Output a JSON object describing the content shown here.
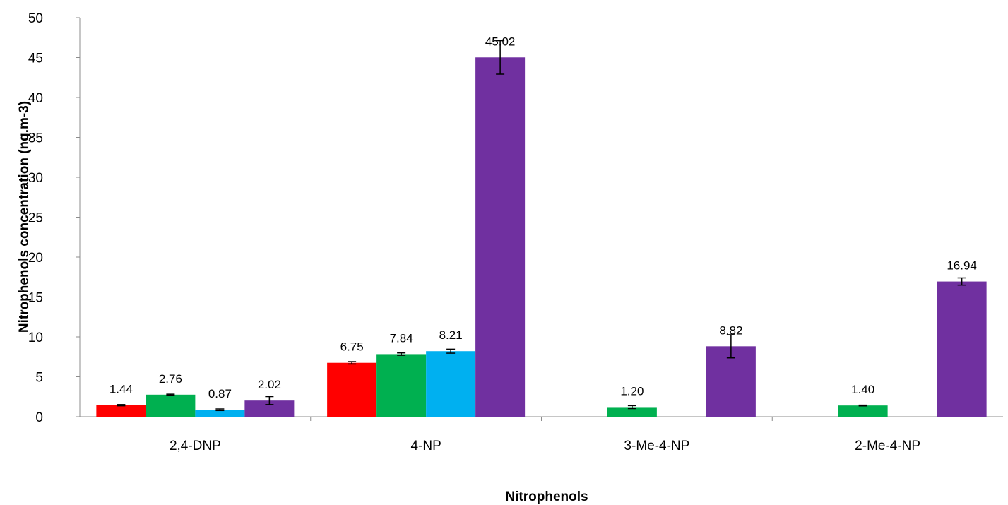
{
  "chart_data": {
    "type": "bar",
    "xlabel": "Nitrophenols",
    "ylabel": "Nitrophenols concentration (ng.m-3)",
    "ylim": [
      0,
      50
    ],
    "yticks": [
      0,
      5,
      10,
      15,
      20,
      25,
      30,
      35,
      40,
      45,
      50
    ],
    "categories": [
      "2,4-DNP",
      "4-NP",
      "3-Me-4-NP",
      "2-Me-4-NP"
    ],
    "grid": false,
    "legend": "none",
    "series": [
      {
        "color": "#ff0000",
        "values": [
          1.44,
          6.75,
          null,
          null
        ],
        "errors": [
          0.08,
          0.15,
          null,
          null
        ],
        "labels": [
          "1.44",
          "6.75",
          "",
          ""
        ]
      },
      {
        "color": "#00b050",
        "values": [
          2.76,
          7.84,
          1.2,
          1.4
        ],
        "errors": [
          0.06,
          0.15,
          0.18,
          0.05
        ],
        "labels": [
          "2.76",
          "7.84",
          "1.20",
          "1.40"
        ]
      },
      {
        "color": "#00b0f0",
        "values": [
          0.87,
          8.21,
          null,
          null
        ],
        "errors": [
          0.1,
          0.25,
          null,
          null
        ],
        "labels": [
          "0.87",
          "8.21",
          "",
          ""
        ]
      },
      {
        "color": "#7030a0",
        "values": [
          2.02,
          45.02,
          8.82,
          16.94
        ],
        "errors": [
          0.5,
          2.1,
          1.45,
          0.45
        ],
        "labels": [
          "2.02",
          "45.02",
          "8.82",
          "16.94"
        ]
      }
    ]
  }
}
